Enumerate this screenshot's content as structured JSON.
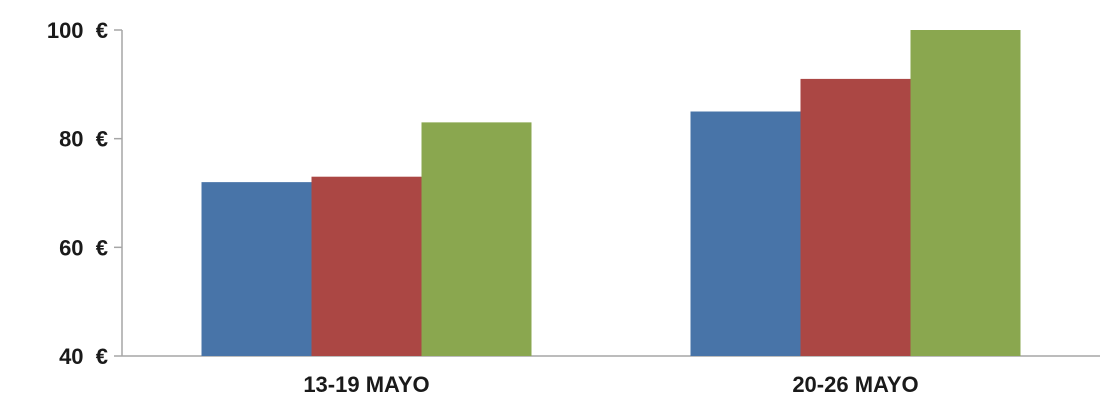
{
  "chart_data": {
    "type": "bar",
    "categories": [
      "13-19 MAYO",
      "20-26 MAYO"
    ],
    "series": [
      {
        "values": [
          72,
          85
        ],
        "color": "#4874a8"
      },
      {
        "values": [
          73,
          91
        ],
        "color": "#ab4744"
      },
      {
        "values": [
          83,
          100
        ],
        "color": "#8aa74f"
      }
    ],
    "ylim": [
      40,
      100
    ],
    "yticks": [
      40,
      60,
      80,
      100
    ],
    "y_tick_labels": [
      "40  €",
      "60  €",
      "80  €",
      "100  €"
    ],
    "grid": false,
    "legend": "none",
    "axis_color": "#a6a6a6"
  }
}
